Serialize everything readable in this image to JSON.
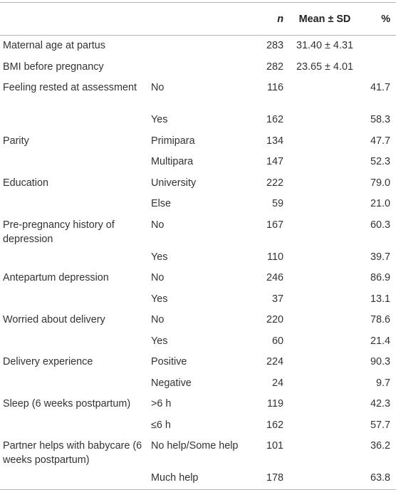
{
  "table": {
    "header": {
      "variable": "",
      "category": "",
      "n": "n",
      "mean_sd": "Mean ± SD",
      "percent": "%"
    },
    "rows": [
      {
        "variable": "Maternal age at partus",
        "category": "",
        "n": "283",
        "mean_sd": "31.40 ± 4.31",
        "percent": ""
      },
      {
        "variable": "BMI before pregnancy",
        "category": "",
        "n": "282",
        "mean_sd": "23.65 ± 4.01",
        "percent": ""
      },
      {
        "variable": "Feeling rested at assessment",
        "category": "No",
        "n": "116",
        "mean_sd": "",
        "percent": "41.7"
      },
      {
        "variable": "",
        "category": "Yes",
        "n": "162",
        "mean_sd": "",
        "percent": "58.3"
      },
      {
        "variable": "Parity",
        "category": "Primipara",
        "n": "134",
        "mean_sd": "",
        "percent": "47.7"
      },
      {
        "variable": "",
        "category": "Multipara",
        "n": "147",
        "mean_sd": "",
        "percent": "52.3"
      },
      {
        "variable": "Education",
        "category": "University",
        "n": "222",
        "mean_sd": "",
        "percent": "79.0"
      },
      {
        "variable": "",
        "category": "Else",
        "n": "59",
        "mean_sd": "",
        "percent": "21.0"
      },
      {
        "variable": "Pre-pregnancy history of depression",
        "category": "No",
        "n": "167",
        "mean_sd": "",
        "percent": "60.3"
      },
      {
        "variable": "",
        "category": "Yes",
        "n": "110",
        "mean_sd": "",
        "percent": "39.7"
      },
      {
        "variable": "Antepartum depression",
        "category": "No",
        "n": "246",
        "mean_sd": "",
        "percent": "86.9"
      },
      {
        "variable": "",
        "category": "Yes",
        "n": "37",
        "mean_sd": "",
        "percent": "13.1"
      },
      {
        "variable": "Worried about delivery",
        "category": "No",
        "n": "220",
        "mean_sd": "",
        "percent": "78.6"
      },
      {
        "variable": "",
        "category": "Yes",
        "n": "60",
        "mean_sd": "",
        "percent": "21.4"
      },
      {
        "variable": "Delivery experience",
        "category": "Positive",
        "n": "224",
        "mean_sd": "",
        "percent": "90.3"
      },
      {
        "variable": "",
        "category": "Negative",
        "n": "24",
        "mean_sd": "",
        "percent": "9.7"
      },
      {
        "variable": "Sleep (6 weeks postpartum)",
        "category": ">6 h",
        "n": "119",
        "mean_sd": "",
        "percent": "42.3"
      },
      {
        "variable": "",
        "category": "≤6 h",
        "n": "162",
        "mean_sd": "",
        "percent": "57.7"
      },
      {
        "variable": "Partner helps with babycare (6 weeks postpartum)",
        "category": "No help/Some help",
        "n": "101",
        "mean_sd": "",
        "percent": "36.2"
      },
      {
        "variable": "",
        "category": "Much help",
        "n": "178",
        "mean_sd": "",
        "percent": "63.8"
      }
    ]
  }
}
